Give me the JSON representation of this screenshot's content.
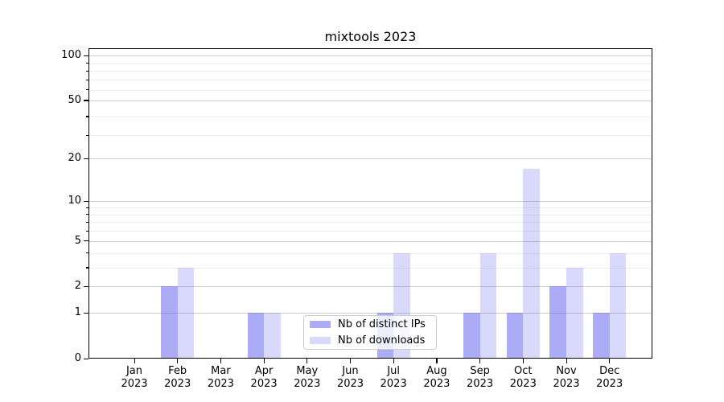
{
  "chart_data": {
    "type": "bar",
    "title": "mixtools 2023",
    "categories": [
      "Jan",
      "Feb",
      "Mar",
      "Apr",
      "May",
      "Jun",
      "Jul",
      "Aug",
      "Sep",
      "Oct",
      "Nov",
      "Dec"
    ],
    "year_label": "2023",
    "series": [
      {
        "name": "Nb of distinct IPs",
        "color": "rgba(102,102,238,0.55)",
        "values": [
          0,
          2,
          0,
          1,
          0,
          0,
          1,
          0,
          1,
          1,
          2,
          1
        ]
      },
      {
        "name": "Nb of downloads",
        "color": "rgba(102,102,238,0.25)",
        "values": [
          0,
          3,
          0,
          1,
          0,
          0,
          4,
          0,
          4,
          17,
          3,
          4
        ]
      }
    ],
    "yscale": "log10(1+v)",
    "yticks": [
      0,
      1,
      2,
      5,
      10,
      20,
      50,
      100
    ],
    "minor_yticks": [
      3,
      4,
      6,
      7,
      8,
      9,
      29,
      39,
      59,
      69,
      79,
      89
    ],
    "ylim": [
      0,
      112
    ],
    "xlabel": "",
    "ylabel": "",
    "grid": "horizontal",
    "grid_major_color": "#cccccc",
    "grid_minor_color": "#ececec",
    "axis_color": "#000000",
    "background_color": "#ffffff",
    "legend_position": "lower center"
  }
}
